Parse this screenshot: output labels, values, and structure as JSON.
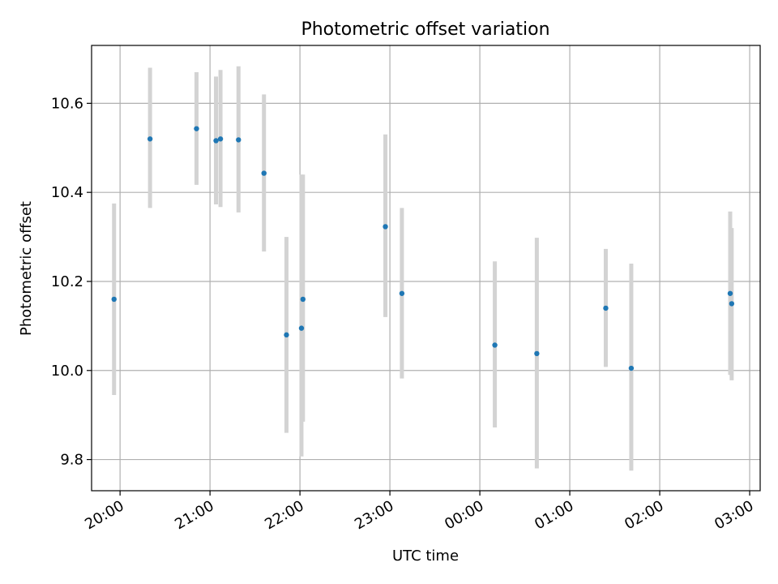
{
  "chart_data": {
    "type": "scatter",
    "title": "Photometric offset variation",
    "xlabel": "UTC time",
    "ylabel": "Photometric offset",
    "grid": true,
    "ylim": [
      9.73,
      10.73
    ],
    "xlim": [
      "19:41",
      "03:07"
    ],
    "x_ticks": [
      "20:00",
      "21:00",
      "22:00",
      "23:00",
      "00:00",
      "01:00",
      "02:00",
      "03:00"
    ],
    "y_ticks": [
      "9.8",
      "10.0",
      "10.2",
      "10.4",
      "10.6"
    ],
    "point_color": "#1f77b4",
    "errorbar_color": "#d3d3d3",
    "points": [
      {
        "time": "19:56",
        "y": 10.16,
        "lo": 9.945,
        "hi": 10.375
      },
      {
        "time": "20:20",
        "y": 10.52,
        "lo": 10.365,
        "hi": 10.68
      },
      {
        "time": "20:51",
        "y": 10.543,
        "lo": 10.417,
        "hi": 10.67
      },
      {
        "time": "21:04",
        "y": 10.516,
        "lo": 10.373,
        "hi": 10.66
      },
      {
        "time": "21:07",
        "y": 10.52,
        "lo": 10.367,
        "hi": 10.675
      },
      {
        "time": "21:19",
        "y": 10.518,
        "lo": 10.355,
        "hi": 10.683
      },
      {
        "time": "21:36",
        "y": 10.443,
        "lo": 10.267,
        "hi": 10.62
      },
      {
        "time": "21:51",
        "y": 10.08,
        "lo": 9.86,
        "hi": 10.3
      },
      {
        "time": "22:01",
        "y": 10.095,
        "lo": 9.807,
        "hi": 10.44
      },
      {
        "time": "22:02",
        "y": 10.16,
        "lo": 9.885,
        "hi": 10.44
      },
      {
        "time": "22:57",
        "y": 10.323,
        "lo": 10.12,
        "hi": 10.53
      },
      {
        "time": "23:08",
        "y": 10.173,
        "lo": 9.982,
        "hi": 10.365
      },
      {
        "time": "00:10",
        "y": 10.057,
        "lo": 9.872,
        "hi": 10.245
      },
      {
        "time": "00:38",
        "y": 10.038,
        "lo": 9.78,
        "hi": 10.298
      },
      {
        "time": "01:24",
        "y": 10.14,
        "lo": 10.008,
        "hi": 10.273
      },
      {
        "time": "01:41",
        "y": 10.005,
        "lo": 9.775,
        "hi": 10.24
      },
      {
        "time": "02:47",
        "y": 10.173,
        "lo": 9.99,
        "hi": 10.357
      },
      {
        "time": "02:48",
        "y": 10.15,
        "lo": 9.978,
        "hi": 10.32
      }
    ]
  }
}
